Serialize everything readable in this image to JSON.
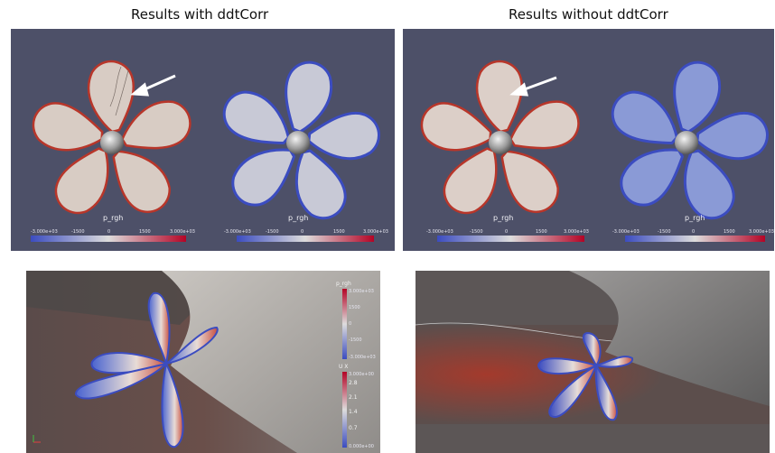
{
  "captions": {
    "left": "Results with ddtCorr",
    "right": "Results without ddtCorr"
  },
  "colormap_label": "p_rgh",
  "colorbar_ticks": [
    "-3.000e+03",
    "-1500",
    "0",
    "1500",
    "3.000e+03"
  ],
  "hull_legend": {
    "p_label": "p_rgh",
    "p_ticks": [
      "3.000e+03",
      "1500",
      "0",
      "-1500",
      "-3.000e+03"
    ],
    "u_label": "U X",
    "u_ticks": [
      "3.000e+00",
      "2.8",
      "2.1",
      "1.4",
      "0.7",
      "0.000e+00"
    ]
  },
  "colors": {
    "background_panel": "#4d5068",
    "low": "#3b4cc0",
    "mid": "#dddcdc",
    "high": "#b40426",
    "hull_gray": "#8f8c89"
  }
}
